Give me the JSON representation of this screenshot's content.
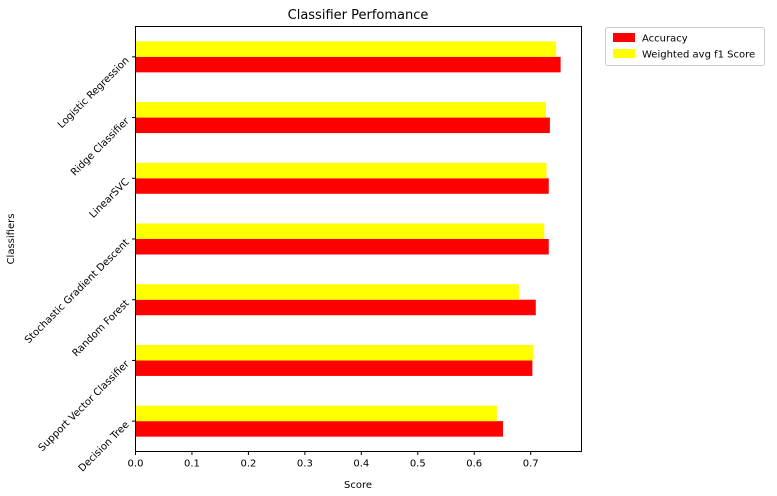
{
  "chart_data": {
    "type": "bar",
    "orientation": "horizontal",
    "title": "Classifier Perfomance",
    "xlabel": "Score",
    "ylabel": "Classifiers",
    "categories": [
      "Decision Tree",
      "Support Vector Classifier",
      "Random Forest",
      "Stochastic Gradient Descent",
      "LinearSVC",
      "Ridge Classifier",
      "Logistic Regression"
    ],
    "series": [
      {
        "name": "Accuracy",
        "color": "#ff0000",
        "values": [
          0.651,
          0.703,
          0.709,
          0.732,
          0.732,
          0.734,
          0.753
        ]
      },
      {
        "name": "Weighted avg f1 Score",
        "color": "#ffff00",
        "values": [
          0.64,
          0.704,
          0.679,
          0.724,
          0.728,
          0.727,
          0.745
        ]
      }
    ],
    "xlim": [
      0,
      0.79
    ],
    "xticks": [
      "0.0",
      "0.1",
      "0.2",
      "0.3",
      "0.4",
      "0.5",
      "0.6",
      "0.7"
    ],
    "grid": false,
    "legend_position": "outside-top-right"
  }
}
